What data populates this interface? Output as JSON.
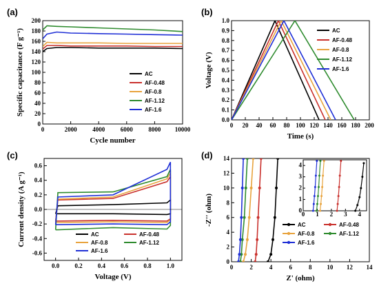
{
  "colors": {
    "AC": "#000000",
    "AF-0.48": "#c9302c",
    "AF-0.8": "#e8a33d",
    "AF-1.12": "#2e8b2e",
    "AF-1.6": "#1f2fd6"
  },
  "chart_data": [
    {
      "panel": "(a)",
      "type": "line",
      "xlabel": "Cycle number",
      "ylabel": "Specific capacitance (F g⁻¹)",
      "xlim": [
        0,
        10000
      ],
      "ylim": [
        0,
        200
      ],
      "xticks": [
        "0",
        "2000",
        "4000",
        "6000",
        "8000",
        "10000"
      ],
      "yticks": [
        "0",
        "20",
        "40",
        "60",
        "80",
        "100",
        "120",
        "140",
        "160",
        "180",
        "200"
      ],
      "legend": "center-right",
      "series": [
        {
          "name": "AC",
          "x": [
            0,
            300,
            1000,
            2000,
            4000,
            6000,
            8000,
            10000
          ],
          "y": [
            140,
            146,
            148,
            148,
            147,
            147,
            147,
            146
          ]
        },
        {
          "name": "AF-0.48",
          "x": [
            0,
            300,
            1000,
            2000,
            4000,
            6000,
            8000,
            10000
          ],
          "y": [
            145,
            152,
            152,
            151,
            151,
            151,
            150,
            150
          ]
        },
        {
          "name": "AF-0.8",
          "x": [
            0,
            300,
            1000,
            2000,
            4000,
            6000,
            8000,
            10000
          ],
          "y": [
            150,
            158,
            157,
            157,
            157,
            156,
            156,
            156
          ]
        },
        {
          "name": "AF-1.12",
          "x": [
            0,
            300,
            1000,
            2000,
            4000,
            6000,
            8000,
            10000
          ],
          "y": [
            182,
            190,
            189,
            188,
            186,
            184,
            182,
            179
          ]
        },
        {
          "name": "AF-1.6",
          "x": [
            0,
            300,
            1000,
            2000,
            4000,
            6000,
            8000,
            10000
          ],
          "y": [
            165,
            174,
            178,
            176,
            175,
            174,
            173,
            172
          ]
        }
      ]
    },
    {
      "panel": "(b)",
      "type": "line",
      "xlabel": "Time (s)",
      "ylabel": "Voltage (V)",
      "xlim": [
        0,
        200
      ],
      "ylim": [
        0,
        1.0
      ],
      "xticks": [
        "0",
        "20",
        "40",
        "60",
        "80",
        "100",
        "120",
        "140",
        "160",
        "180",
        "200"
      ],
      "yticks": [
        "0.0",
        "0.1",
        "0.2",
        "0.3",
        "0.4",
        "0.5",
        "0.6",
        "0.7",
        "0.8",
        "0.9",
        "1.0"
      ],
      "legend": "top-right",
      "series": [
        {
          "name": "AC",
          "x": [
            0,
            63,
            127
          ],
          "y": [
            0,
            1,
            0
          ]
        },
        {
          "name": "AF-0.48",
          "x": [
            0,
            68,
            136
          ],
          "y": [
            0,
            1,
            0
          ]
        },
        {
          "name": "AF-0.8",
          "x": [
            0,
            72,
            144
          ],
          "y": [
            0,
            1,
            0
          ]
        },
        {
          "name": "AF-1.12",
          "x": [
            0,
            92,
            178
          ],
          "y": [
            0,
            1,
            0
          ]
        },
        {
          "name": "AF-1.6",
          "x": [
            0,
            76,
            151
          ],
          "y": [
            0,
            1,
            0
          ]
        }
      ]
    },
    {
      "panel": "(c)",
      "type": "line",
      "xlabel": "Voltage (V)",
      "ylabel": "Current density (A g⁻¹)",
      "xlim": [
        -0.1,
        1.1
      ],
      "ylim": [
        -0.7,
        0.7
      ],
      "xticks": [
        "0.0",
        "0.2",
        "0.4",
        "0.6",
        "0.8",
        "1.0"
      ],
      "yticks": [
        "-0.6",
        "-0.4",
        "-0.2",
        "0.0",
        "0.2",
        "0.4",
        "0.6"
      ],
      "legend": "bottom",
      "series": [
        {
          "name": "AC",
          "x": [
            0,
            0.02,
            0.5,
            0.97,
            1.0,
            1.0,
            0.97,
            0.5,
            0.02,
            0
          ],
          "y": [
            -0.06,
            0.05,
            0.065,
            0.09,
            0.13,
            -0.06,
            -0.07,
            -0.06,
            -0.06,
            -0.06
          ]
        },
        {
          "name": "AF-0.48",
          "x": [
            0,
            0.02,
            0.5,
            0.97,
            1.0,
            1.0,
            0.97,
            0.5,
            0.02,
            0
          ],
          "y": [
            -0.16,
            0.13,
            0.15,
            0.38,
            0.45,
            -0.13,
            -0.16,
            -0.15,
            -0.16,
            -0.16
          ]
        },
        {
          "name": "AF-0.8",
          "x": [
            0,
            0.02,
            0.5,
            0.97,
            1.0,
            1.0,
            0.97,
            0.5,
            0.02,
            0
          ],
          "y": [
            -0.18,
            0.14,
            0.17,
            0.42,
            0.5,
            -0.14,
            -0.18,
            -0.17,
            -0.18,
            -0.18
          ]
        },
        {
          "name": "AF-1.12",
          "x": [
            0,
            0.02,
            0.5,
            0.97,
            1.0,
            1.0,
            0.97,
            0.5,
            0.02,
            0
          ],
          "y": [
            -0.28,
            0.23,
            0.24,
            0.45,
            0.55,
            -0.22,
            -0.27,
            -0.25,
            -0.28,
            -0.28
          ]
        },
        {
          "name": "AF-1.6",
          "x": [
            0,
            0.02,
            0.5,
            0.97,
            1.0,
            1.0,
            0.97,
            0.5,
            0.02,
            0
          ],
          "y": [
            -0.21,
            0.17,
            0.2,
            0.55,
            0.65,
            -0.17,
            -0.21,
            -0.2,
            -0.21,
            -0.21
          ]
        }
      ]
    },
    {
      "panel": "(d)",
      "type": "scatter",
      "xlabel": "Z' (ohm)",
      "ylabel": "-Z'' (ohm)",
      "xlim": [
        0,
        14
      ],
      "ylim": [
        0,
        14
      ],
      "xticks": [
        "0",
        "2",
        "4",
        "6",
        "8",
        "10",
        "12",
        "14"
      ],
      "yticks": [
        "0",
        "2",
        "4",
        "6",
        "8",
        "10",
        "12",
        "14"
      ],
      "legend": "bottom-right",
      "series": [
        {
          "name": "AC",
          "x": [
            3.7,
            4.0,
            4.2,
            4.4,
            4.55,
            4.7
          ],
          "y": [
            0,
            1,
            3,
            6,
            10,
            14
          ]
        },
        {
          "name": "AF-0.48",
          "x": [
            2.4,
            2.5,
            2.6,
            2.7,
            2.85,
            3.0
          ],
          "y": [
            0,
            1,
            3,
            6,
            10,
            14
          ]
        },
        {
          "name": "AF-0.8",
          "x": [
            1.2,
            1.4,
            1.6,
            1.8,
            2.0,
            2.2
          ],
          "y": [
            0,
            1,
            3,
            6,
            10,
            14
          ]
        },
        {
          "name": "AF-1.12",
          "x": [
            0.9,
            1.0,
            1.1,
            1.3,
            1.45,
            1.6
          ],
          "y": [
            0,
            1,
            3,
            6,
            10,
            14
          ]
        },
        {
          "name": "AF-1.6",
          "x": [
            0.7,
            0.8,
            0.9,
            1.0,
            1.1,
            1.2
          ],
          "y": [
            0,
            1,
            3,
            6,
            10,
            14
          ]
        }
      ],
      "inset": {
        "xlim": [
          0,
          4.5
        ],
        "ylim": [
          0,
          4.5
        ],
        "xticks": [
          "0",
          "1",
          "2",
          "3",
          "4"
        ],
        "yticks": [
          "0",
          "1",
          "2",
          "3",
          "4"
        ],
        "series": [
          {
            "name": "AC",
            "x": [
              3.7,
              3.85,
              4.0,
              4.1,
              4.2,
              4.3
            ],
            "y": [
              0,
              0.5,
              1.2,
              2.0,
              3.0,
              4.2
            ]
          },
          {
            "name": "AF-0.48",
            "x": [
              2.4,
              2.45,
              2.5,
              2.55,
              2.6,
              2.68
            ],
            "y": [
              0,
              0.6,
              1.3,
              2.1,
              3.1,
              4.4
            ]
          },
          {
            "name": "AF-0.8",
            "x": [
              1.2,
              1.25,
              1.3,
              1.35,
              1.4,
              1.48
            ],
            "y": [
              0,
              0.6,
              1.3,
              2.1,
              3.1,
              4.4
            ]
          },
          {
            "name": "AF-1.12",
            "x": [
              0.95,
              1.0,
              1.05,
              1.1,
              1.15,
              1.22
            ],
            "y": [
              0,
              0.6,
              1.3,
              2.1,
              3.1,
              4.4
            ]
          },
          {
            "name": "AF-1.6",
            "x": [
              0.7,
              0.75,
              0.8,
              0.85,
              0.9,
              0.97
            ],
            "y": [
              0,
              0.6,
              1.3,
              2.1,
              3.1,
              4.4
            ]
          }
        ]
      }
    }
  ]
}
